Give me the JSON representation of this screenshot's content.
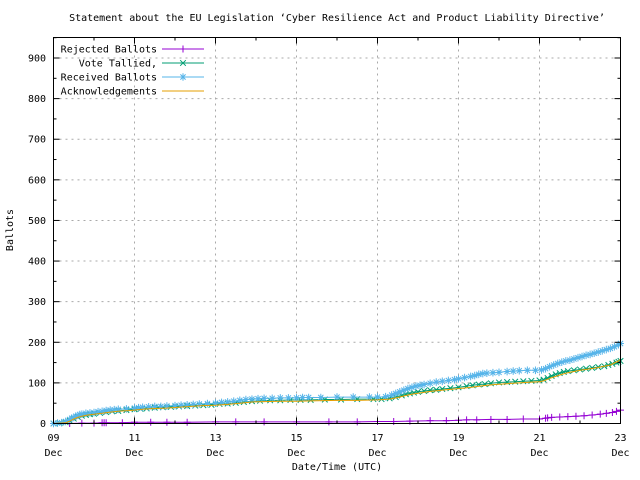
{
  "title": "Statement about the EU Legislation ‘Cyber Resilience Act and Product Liability Directive’",
  "x_axis": {
    "label": "Date/Time (UTC)",
    "major_ticks": [
      {
        "day": 9,
        "line1": "09",
        "line2": "Dec"
      },
      {
        "day": 11,
        "line1": "11",
        "line2": "Dec"
      },
      {
        "day": 13,
        "line1": "13",
        "line2": "Dec"
      },
      {
        "day": 15,
        "line1": "15",
        "line2": "Dec"
      },
      {
        "day": 17,
        "line1": "17",
        "line2": "Dec"
      },
      {
        "day": 19,
        "line1": "19",
        "line2": "Dec"
      },
      {
        "day": 21,
        "line1": "21",
        "line2": "Dec"
      },
      {
        "day": 23,
        "line1": "23",
        "line2": "Dec"
      }
    ],
    "minor_days": [
      10,
      12,
      14,
      16,
      18,
      20,
      22
    ]
  },
  "y_axis": {
    "label": "Ballots",
    "major_ticks": [
      0,
      100,
      200,
      300,
      400,
      500,
      600,
      700,
      800,
      900
    ],
    "minor_ticks": [
      50,
      150,
      250,
      350,
      450,
      550,
      650,
      750,
      850,
      950
    ]
  },
  "colors": {
    "background": "#ffffff",
    "border": "#000000",
    "grid": "#a9a9a9",
    "text": "#000000"
  },
  "chart_data": {
    "type": "line",
    "title": "Statement about the EU Legislation ‘Cyber Resilience Act and Product Liability Directive’",
    "xlabel": "Date/Time (UTC)",
    "ylabel": "Ballots",
    "x_unit": "day of December (UTC)",
    "xlim": [
      9,
      23
    ],
    "ylim": [
      0,
      952
    ],
    "grid": true,
    "legend_position": "top-left",
    "series": [
      {
        "name": "Rejected Ballots",
        "color": "#9400d3",
        "marker": "plus",
        "points": [
          [
            9.0,
            0
          ],
          [
            9.4,
            0
          ],
          [
            9.7,
            1
          ],
          [
            10.0,
            1
          ],
          [
            10.2,
            2
          ],
          [
            10.25,
            2
          ],
          [
            10.3,
            2
          ],
          [
            10.7,
            2
          ],
          [
            11.0,
            3
          ],
          [
            11.4,
            3
          ],
          [
            11.8,
            3
          ],
          [
            12.3,
            3
          ],
          [
            13.0,
            4
          ],
          [
            13.5,
            4
          ],
          [
            14.2,
            4
          ],
          [
            15.0,
            4
          ],
          [
            15.8,
            4
          ],
          [
            16.5,
            4
          ],
          [
            17.0,
            5
          ],
          [
            17.4,
            5
          ],
          [
            17.8,
            6
          ],
          [
            18.3,
            7
          ],
          [
            18.7,
            7
          ],
          [
            19.0,
            8
          ],
          [
            19.2,
            9
          ],
          [
            19.45,
            9
          ],
          [
            19.8,
            10
          ],
          [
            20.2,
            10
          ],
          [
            20.6,
            11
          ],
          [
            21.0,
            11
          ],
          [
            21.15,
            13
          ],
          [
            21.2,
            14
          ],
          [
            21.3,
            15
          ],
          [
            21.5,
            16
          ],
          [
            21.7,
            17
          ],
          [
            21.9,
            18
          ],
          [
            22.1,
            19
          ],
          [
            22.3,
            21
          ],
          [
            22.5,
            23
          ],
          [
            22.65,
            25
          ],
          [
            22.8,
            27
          ],
          [
            22.9,
            30
          ],
          [
            23.0,
            33
          ]
        ]
      },
      {
        "name": "Vote Tallied,",
        "color": "#009e73",
        "marker": "cross",
        "points": [
          [
            9.0,
            0
          ],
          [
            9.15,
            1
          ],
          [
            9.3,
            3
          ],
          [
            9.4,
            7
          ],
          [
            9.5,
            12
          ],
          [
            9.6,
            16
          ],
          [
            9.7,
            19
          ],
          [
            9.8,
            21
          ],
          [
            9.9,
            23
          ],
          [
            10.0,
            24
          ],
          [
            10.15,
            26
          ],
          [
            10.3,
            28
          ],
          [
            10.45,
            30
          ],
          [
            10.6,
            31
          ],
          [
            10.8,
            33
          ],
          [
            11.0,
            35
          ],
          [
            11.15,
            36
          ],
          [
            11.3,
            37
          ],
          [
            11.5,
            39
          ],
          [
            11.7,
            40
          ],
          [
            11.9,
            41
          ],
          [
            12.1,
            42
          ],
          [
            12.3,
            43
          ],
          [
            12.5,
            44
          ],
          [
            12.7,
            45
          ],
          [
            12.9,
            46
          ],
          [
            13.1,
            48
          ],
          [
            13.3,
            49
          ],
          [
            13.5,
            51
          ],
          [
            13.7,
            53
          ],
          [
            13.9,
            55
          ],
          [
            14.1,
            56
          ],
          [
            14.35,
            57
          ],
          [
            14.6,
            57
          ],
          [
            14.85,
            58
          ],
          [
            15.1,
            58
          ],
          [
            15.35,
            58
          ],
          [
            15.7,
            59
          ],
          [
            16.1,
            59
          ],
          [
            16.5,
            60
          ],
          [
            16.9,
            60
          ],
          [
            17.1,
            60
          ],
          [
            17.3,
            62
          ],
          [
            17.45,
            65
          ],
          [
            17.6,
            69
          ],
          [
            17.7,
            72
          ],
          [
            17.8,
            74
          ],
          [
            17.9,
            76
          ],
          [
            18.0,
            78
          ],
          [
            18.15,
            80
          ],
          [
            18.3,
            82
          ],
          [
            18.45,
            83
          ],
          [
            18.6,
            85
          ],
          [
            18.8,
            87
          ],
          [
            19.0,
            89
          ],
          [
            19.2,
            92
          ],
          [
            19.35,
            94
          ],
          [
            19.5,
            96
          ],
          [
            19.65,
            97
          ],
          [
            19.8,
            99
          ],
          [
            20.0,
            101
          ],
          [
            20.2,
            102
          ],
          [
            20.4,
            103
          ],
          [
            20.6,
            104
          ],
          [
            20.8,
            105
          ],
          [
            21.0,
            106
          ],
          [
            21.1,
            108
          ],
          [
            21.2,
            112
          ],
          [
            21.3,
            117
          ],
          [
            21.4,
            121
          ],
          [
            21.5,
            124
          ],
          [
            21.6,
            127
          ],
          [
            21.7,
            129
          ],
          [
            21.85,
            131
          ],
          [
            22.0,
            133
          ],
          [
            22.15,
            135
          ],
          [
            22.3,
            137
          ],
          [
            22.45,
            139
          ],
          [
            22.6,
            141
          ],
          [
            22.7,
            144
          ],
          [
            22.8,
            147
          ],
          [
            22.9,
            150
          ],
          [
            22.95,
            152
          ],
          [
            23.0,
            154
          ]
        ]
      },
      {
        "name": "Received Ballots",
        "color": "#56b4e9",
        "marker": "asterisk",
        "points": [
          [
            9.0,
            0
          ],
          [
            9.1,
            1
          ],
          [
            9.2,
            2
          ],
          [
            9.3,
            5
          ],
          [
            9.4,
            10
          ],
          [
            9.45,
            13
          ],
          [
            9.5,
            15
          ],
          [
            9.55,
            18
          ],
          [
            9.6,
            20
          ],
          [
            9.65,
            22
          ],
          [
            9.7,
            23
          ],
          [
            9.8,
            25
          ],
          [
            9.9,
            26
          ],
          [
            10.0,
            27
          ],
          [
            10.1,
            29
          ],
          [
            10.2,
            30
          ],
          [
            10.3,
            32
          ],
          [
            10.4,
            33
          ],
          [
            10.5,
            34
          ],
          [
            10.6,
            35
          ],
          [
            10.8,
            36
          ],
          [
            11.0,
            38
          ],
          [
            11.1,
            39
          ],
          [
            11.2,
            40
          ],
          [
            11.35,
            41
          ],
          [
            11.5,
            42
          ],
          [
            11.65,
            42
          ],
          [
            11.8,
            43
          ],
          [
            12.0,
            44
          ],
          [
            12.15,
            45
          ],
          [
            12.3,
            46
          ],
          [
            12.45,
            47
          ],
          [
            12.6,
            48
          ],
          [
            12.8,
            49
          ],
          [
            13.0,
            50
          ],
          [
            13.15,
            52
          ],
          [
            13.3,
            53
          ],
          [
            13.45,
            55
          ],
          [
            13.6,
            57
          ],
          [
            13.75,
            59
          ],
          [
            13.9,
            60
          ],
          [
            14.05,
            61
          ],
          [
            14.2,
            62
          ],
          [
            14.4,
            62
          ],
          [
            14.6,
            63
          ],
          [
            14.8,
            63
          ],
          [
            15.0,
            63
          ],
          [
            15.15,
            64
          ],
          [
            15.3,
            64
          ],
          [
            15.6,
            64
          ],
          [
            16.0,
            65
          ],
          [
            16.4,
            65
          ],
          [
            16.8,
            65
          ],
          [
            17.0,
            65
          ],
          [
            17.2,
            66
          ],
          [
            17.35,
            70
          ],
          [
            17.45,
            74
          ],
          [
            17.55,
            78
          ],
          [
            17.65,
            82
          ],
          [
            17.75,
            86
          ],
          [
            17.85,
            89
          ],
          [
            17.95,
            92
          ],
          [
            18.05,
            94
          ],
          [
            18.15,
            96
          ],
          [
            18.3,
            99
          ],
          [
            18.45,
            102
          ],
          [
            18.6,
            104
          ],
          [
            18.75,
            106
          ],
          [
            18.9,
            108
          ],
          [
            19.0,
            110
          ],
          [
            19.15,
            113
          ],
          [
            19.3,
            116
          ],
          [
            19.4,
            118
          ],
          [
            19.5,
            121
          ],
          [
            19.6,
            123
          ],
          [
            19.7,
            124
          ],
          [
            19.85,
            125
          ],
          [
            20.0,
            126
          ],
          [
            20.2,
            128
          ],
          [
            20.35,
            129
          ],
          [
            20.5,
            130
          ],
          [
            20.7,
            131
          ],
          [
            20.9,
            131
          ],
          [
            21.05,
            132
          ],
          [
            21.15,
            135
          ],
          [
            21.25,
            140
          ],
          [
            21.35,
            144
          ],
          [
            21.45,
            148
          ],
          [
            21.55,
            151
          ],
          [
            21.65,
            154
          ],
          [
            21.75,
            156
          ],
          [
            21.85,
            159
          ],
          [
            21.95,
            162
          ],
          [
            22.05,
            165
          ],
          [
            22.15,
            168
          ],
          [
            22.25,
            170
          ],
          [
            22.35,
            173
          ],
          [
            22.45,
            176
          ],
          [
            22.55,
            179
          ],
          [
            22.65,
            182
          ],
          [
            22.75,
            185
          ],
          [
            22.85,
            189
          ],
          [
            22.95,
            194
          ],
          [
            23.0,
            197
          ]
        ]
      },
      {
        "name": "Acknowledgements",
        "color": "#e69f00",
        "marker": "none",
        "points": [
          [
            9.0,
            0
          ],
          [
            9.3,
            2
          ],
          [
            9.4,
            6
          ],
          [
            9.5,
            11
          ],
          [
            9.6,
            15
          ],
          [
            9.7,
            18
          ],
          [
            9.85,
            21
          ],
          [
            10.0,
            23
          ],
          [
            10.2,
            25
          ],
          [
            10.4,
            28
          ],
          [
            10.6,
            30
          ],
          [
            10.9,
            32
          ],
          [
            11.2,
            35
          ],
          [
            11.5,
            37
          ],
          [
            11.8,
            38
          ],
          [
            12.1,
            40
          ],
          [
            12.4,
            42
          ],
          [
            12.7,
            44
          ],
          [
            13.0,
            45
          ],
          [
            13.3,
            47
          ],
          [
            13.6,
            50
          ],
          [
            13.9,
            53
          ],
          [
            14.2,
            54
          ],
          [
            14.6,
            55
          ],
          [
            15.0,
            55
          ],
          [
            15.5,
            56
          ],
          [
            16.0,
            57
          ],
          [
            16.5,
            57
          ],
          [
            17.0,
            58
          ],
          [
            17.3,
            60
          ],
          [
            17.5,
            64
          ],
          [
            17.7,
            69
          ],
          [
            17.9,
            73
          ],
          [
            18.1,
            76
          ],
          [
            18.3,
            79
          ],
          [
            18.5,
            81
          ],
          [
            18.7,
            83
          ],
          [
            19.0,
            86
          ],
          [
            19.3,
            89
          ],
          [
            19.6,
            93
          ],
          [
            19.9,
            96
          ],
          [
            20.2,
            98
          ],
          [
            20.5,
            100
          ],
          [
            20.8,
            102
          ],
          [
            21.0,
            103
          ],
          [
            21.1,
            105
          ],
          [
            21.25,
            111
          ],
          [
            21.4,
            116
          ],
          [
            21.55,
            121
          ],
          [
            21.7,
            125
          ],
          [
            21.85,
            128
          ],
          [
            22.0,
            131
          ],
          [
            22.2,
            134
          ],
          [
            22.4,
            137
          ],
          [
            22.6,
            141
          ],
          [
            22.75,
            144
          ],
          [
            22.85,
            149
          ],
          [
            22.95,
            154
          ],
          [
            23.0,
            158
          ]
        ]
      }
    ]
  }
}
